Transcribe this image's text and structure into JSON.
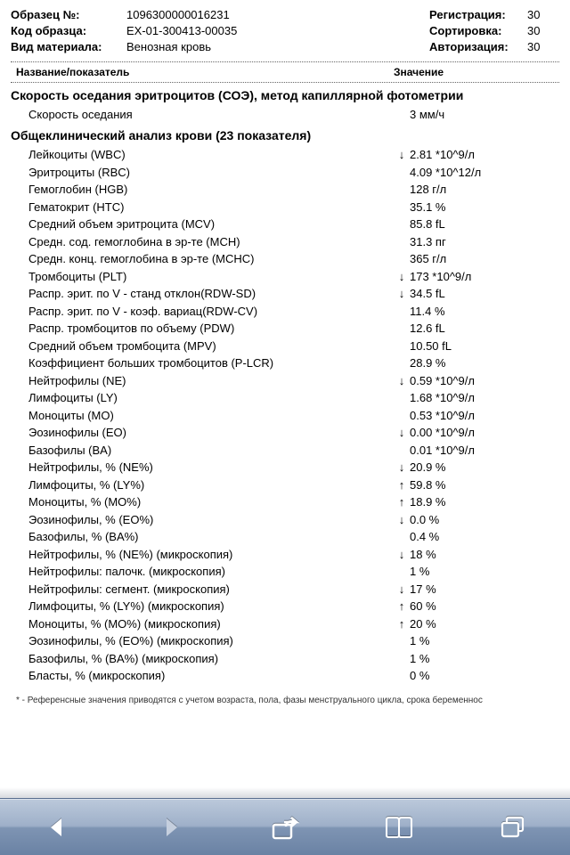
{
  "header": {
    "left": [
      {
        "label": "Образец №:",
        "value": "1096300000016231"
      },
      {
        "label": "Код образца:",
        "value": "EX-01-300413-00035"
      },
      {
        "label": "Вид материала:",
        "value": "Венозная кровь"
      }
    ],
    "right": [
      {
        "label": "Регистрация:",
        "value": "30"
      },
      {
        "label": "Сортировка:",
        "value": "30"
      },
      {
        "label": "Авторизация:",
        "value": "30"
      }
    ]
  },
  "columns": {
    "name": "Название/показатель",
    "value": "Значение"
  },
  "section1": {
    "title": "Скорость оседания эритроцитов (СОЭ), метод капиллярной фотометрии",
    "rows": [
      {
        "name": "Скорость оседания",
        "arrow": "",
        "value": "3 мм/ч"
      }
    ]
  },
  "section2": {
    "title": "Общеклинический анализ крови (23 показателя)",
    "rows": [
      {
        "name": "Лейкоциты (WBC)",
        "arrow": "↓",
        "value": "2.81 *10^9/л"
      },
      {
        "name": "Эритроциты (RBC)",
        "arrow": "",
        "value": "4.09 *10^12/л"
      },
      {
        "name": "Гемоглобин (HGB)",
        "arrow": "",
        "value": "128 г/л"
      },
      {
        "name": "Гематокрит (HTC)",
        "arrow": "",
        "value": "35.1 %"
      },
      {
        "name": "Средний объем эритроцита (MCV)",
        "arrow": "",
        "value": "85.8 fL"
      },
      {
        "name": "Средн. сод. гемоглобина в эр-те (MCH)",
        "arrow": "",
        "value": "31.3 пг"
      },
      {
        "name": "Средн. конц. гемоглобина в эр-те (MCHC)",
        "arrow": "",
        "value": "365 г/л"
      },
      {
        "name": "Тромбоциты (PLT)",
        "arrow": "↓",
        "value": "173 *10^9/л"
      },
      {
        "name": "Распр. эрит. по V - станд отклон(RDW-SD)",
        "arrow": "↓",
        "value": "34.5 fL"
      },
      {
        "name": "Распр. эрит. по V - коэф. вариац(RDW-CV)",
        "arrow": "",
        "value": "11.4 %"
      },
      {
        "name": "Распр. тромбоцитов по объему (PDW)",
        "arrow": "",
        "value": "12.6 fL"
      },
      {
        "name": "Средний объем тромбоцита (MPV)",
        "arrow": "",
        "value": "10.50 fL"
      },
      {
        "name": "Коэффициент больших тромбоцитов (P-LCR)",
        "arrow": "",
        "value": "28.9 %"
      },
      {
        "name": "Нейтрофилы (NE)",
        "arrow": "↓",
        "value": "0.59 *10^9/л"
      },
      {
        "name": "Лимфоциты (LY)",
        "arrow": "",
        "value": "1.68 *10^9/л"
      },
      {
        "name": "Моноциты (MO)",
        "arrow": "",
        "value": "0.53 *10^9/л"
      },
      {
        "name": "Эозинофилы (EO)",
        "arrow": "↓",
        "value": "0.00 *10^9/л"
      },
      {
        "name": "Базофилы (BA)",
        "arrow": "",
        "value": "0.01 *10^9/л"
      },
      {
        "name": "Нейтрофилы, % (NE%)",
        "arrow": "↓",
        "value": "20.9 %"
      },
      {
        "name": "Лимфоциты, % (LY%)",
        "arrow": "↑",
        "value": "59.8 %"
      },
      {
        "name": "Моноциты, % (MO%)",
        "arrow": "↑",
        "value": "18.9 %"
      },
      {
        "name": "Эозинофилы, % (EO%)",
        "arrow": "↓",
        "value": "0.0 %"
      },
      {
        "name": "Базофилы, % (BA%)",
        "arrow": "",
        "value": "0.4 %"
      },
      {
        "name": "Нейтрофилы, % (NE%) (микроскопия)",
        "arrow": "↓",
        "value": "18 %"
      },
      {
        "name": "Нейтрофилы: палочк. (микроскопия)",
        "arrow": "",
        "value": "1 %"
      },
      {
        "name": "Нейтрофилы: сегмент. (микроскопия)",
        "arrow": "↓",
        "value": "17 %"
      },
      {
        "name": "Лимфоциты, % (LY%) (микроскопия)",
        "arrow": "↑",
        "value": "60 %"
      },
      {
        "name": "Моноциты, % (MO%) (микроскопия)",
        "arrow": "↑",
        "value": "20 %"
      },
      {
        "name": "Эозинофилы, % (EO%) (микроскопия)",
        "arrow": "",
        "value": "1 %"
      },
      {
        "name": "Базофилы, % (BA%) (микроскопия)",
        "arrow": "",
        "value": "1 %"
      },
      {
        "name": "Бласты, % (микроскопия)",
        "arrow": "",
        "value": "0 %"
      }
    ]
  },
  "footnote": "* - Референсные значения приводятся с учетом возраста, пола, фазы менструального цикла, срока беременнос",
  "colors": {
    "toolbar_icon": "#ffffff",
    "toolbar_icon_disabled": "#c5cfde"
  }
}
